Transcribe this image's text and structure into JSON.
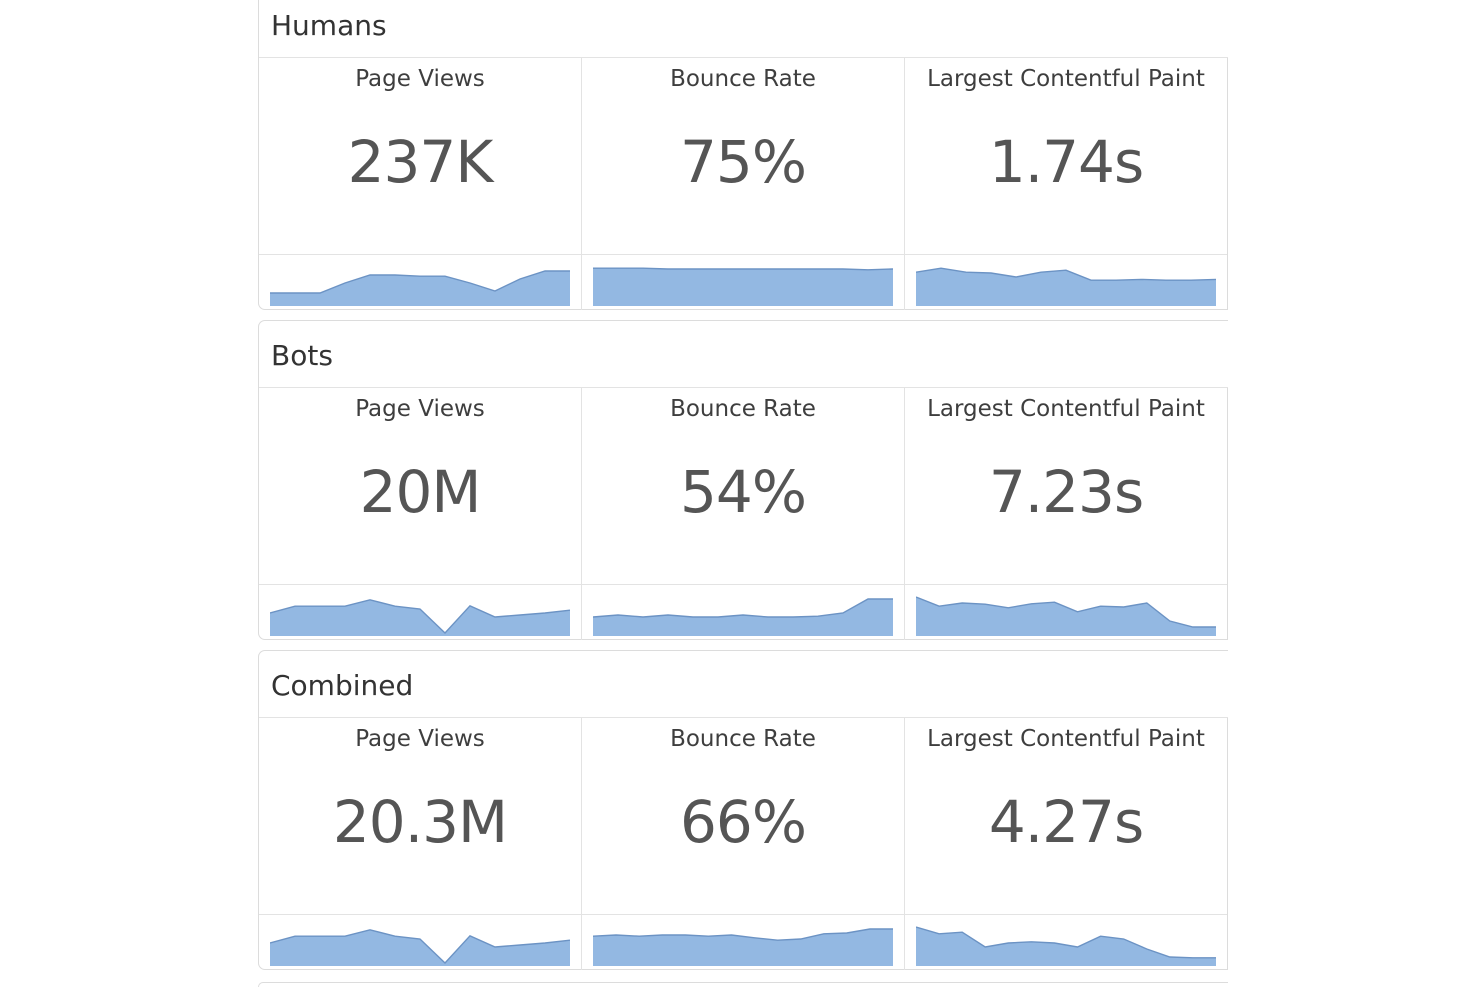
{
  "theme": {
    "spark_fill": "#93b8e2",
    "spark_line": "#6c93c4",
    "border": "#e3e3e3"
  },
  "sections": [
    {
      "title": "Humans",
      "cards": [
        {
          "label": "Page Views",
          "value": "237K",
          "spark": [
            0.3,
            0.3,
            0.3,
            0.55,
            0.75,
            0.75,
            0.72,
            0.72,
            0.55,
            0.35,
            0.65,
            0.85,
            0.85
          ]
        },
        {
          "label": "Bounce Rate",
          "value": "75%",
          "spark": [
            0.92,
            0.92,
            0.92,
            0.9,
            0.9,
            0.9,
            0.9,
            0.9,
            0.9,
            0.9,
            0.9,
            0.88,
            0.9
          ]
        },
        {
          "label": "Largest Contentful Paint",
          "value": "1.74s",
          "spark": [
            0.82,
            0.92,
            0.82,
            0.8,
            0.7,
            0.82,
            0.87,
            0.62,
            0.62,
            0.64,
            0.62,
            0.62,
            0.64
          ]
        }
      ]
    },
    {
      "title": "Bots",
      "cards": [
        {
          "label": "Page Views",
          "value": "20M",
          "spark": [
            0.55,
            0.72,
            0.72,
            0.72,
            0.88,
            0.72,
            0.65,
            0.05,
            0.73,
            0.45,
            0.5,
            0.55,
            0.62
          ]
        },
        {
          "label": "Bounce Rate",
          "value": "54%",
          "spark": [
            0.45,
            0.5,
            0.45,
            0.5,
            0.45,
            0.45,
            0.5,
            0.45,
            0.45,
            0.47,
            0.55,
            0.9,
            0.9
          ]
        },
        {
          "label": "Largest Contentful Paint",
          "value": "7.23s",
          "spark": [
            0.95,
            0.72,
            0.8,
            0.77,
            0.68,
            0.78,
            0.82,
            0.58,
            0.72,
            0.7,
            0.8,
            0.35,
            0.2,
            0.2
          ]
        }
      ]
    },
    {
      "title": "Combined",
      "cards": [
        {
          "label": "Page Views",
          "value": "20.3M",
          "spark": [
            0.55,
            0.72,
            0.72,
            0.72,
            0.88,
            0.72,
            0.65,
            0.05,
            0.73,
            0.45,
            0.5,
            0.55,
            0.62
          ]
        },
        {
          "label": "Bounce Rate",
          "value": "66%",
          "spark": [
            0.72,
            0.75,
            0.72,
            0.75,
            0.75,
            0.72,
            0.75,
            0.68,
            0.62,
            0.65,
            0.78,
            0.8,
            0.9,
            0.9
          ]
        },
        {
          "label": "Largest Contentful Paint",
          "value": "4.27s",
          "spark": [
            0.95,
            0.78,
            0.82,
            0.45,
            0.55,
            0.58,
            0.55,
            0.45,
            0.72,
            0.65,
            0.4,
            0.2,
            0.18,
            0.18
          ]
        }
      ]
    }
  ]
}
